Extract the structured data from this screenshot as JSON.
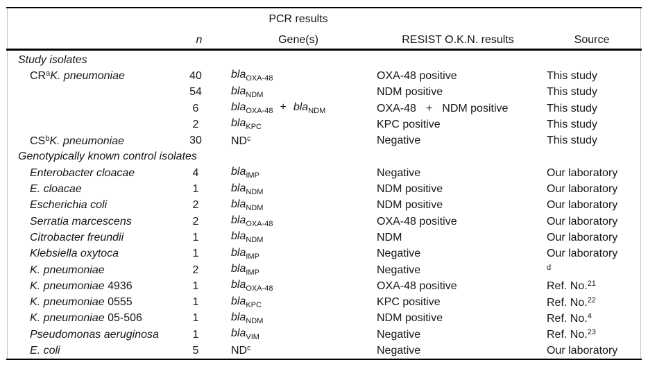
{
  "table": {
    "header": {
      "group_label": "PCR results",
      "columns": [
        "n",
        "Gene(s)",
        "RESIST O.K.N. results",
        "Source"
      ]
    },
    "rows": [
      {
        "type": "section",
        "name": [
          {
            "text": "Study isolates",
            "i": true
          }
        ],
        "n": null,
        "gene": null,
        "result": null,
        "source": null
      },
      {
        "type": "data",
        "name": [
          {
            "text": "CR"
          },
          {
            "text": "a",
            "sup": true
          },
          {
            "text": "K. pneumoniae",
            "i": true
          }
        ],
        "n": "40",
        "gene": [
          {
            "text": "bla",
            "i": true
          },
          {
            "text": "OXA-48",
            "sub": true
          }
        ],
        "result": [
          {
            "text": "OXA-48 positive"
          }
        ],
        "source": [
          {
            "text": "This study"
          }
        ]
      },
      {
        "type": "data",
        "name": null,
        "n": "54",
        "gene": [
          {
            "text": "bla",
            "i": true
          },
          {
            "text": "NDM",
            "sub": true
          }
        ],
        "result": [
          {
            "text": "NDM positive"
          }
        ],
        "source": [
          {
            "text": "This study"
          }
        ]
      },
      {
        "type": "data",
        "name": null,
        "n": "6",
        "gene": [
          {
            "text": "bla",
            "i": true
          },
          {
            "text": "OXA-48",
            "sub": true
          },
          {
            "text": "+",
            "padx": 10
          },
          {
            "text": "bla",
            "i": true
          },
          {
            "text": "NDM",
            "sub": true
          }
        ],
        "result": [
          {
            "text": "OXA-48"
          },
          {
            "text": "+",
            "padx": 14
          },
          {
            "text": "NDM positive"
          }
        ],
        "source": [
          {
            "text": "This study"
          }
        ]
      },
      {
        "type": "data",
        "name": null,
        "n": "2",
        "gene": [
          {
            "text": "bla",
            "i": true
          },
          {
            "text": "KPC",
            "sub": true
          }
        ],
        "result": [
          {
            "text": "KPC positive"
          }
        ],
        "source": [
          {
            "text": "This study"
          }
        ]
      },
      {
        "type": "data",
        "name": [
          {
            "text": "CS"
          },
          {
            "text": "b",
            "sup": true
          },
          {
            "text": "K. pneumoniae",
            "i": true
          }
        ],
        "n": "30",
        "gene": [
          {
            "text": "ND"
          },
          {
            "text": "c",
            "sup": true
          }
        ],
        "result": [
          {
            "text": "Negative"
          }
        ],
        "source": [
          {
            "text": "This study"
          }
        ]
      },
      {
        "type": "section",
        "name": [
          {
            "text": "Genotypically known control isolates",
            "i": true
          }
        ],
        "n": null,
        "gene": null,
        "result": null,
        "source": null
      },
      {
        "type": "data",
        "name": [
          {
            "text": "Enterobacter cloacae",
            "i": true
          }
        ],
        "n": "4",
        "gene": [
          {
            "text": "bla",
            "i": true
          },
          {
            "text": "IMP",
            "sub": true
          }
        ],
        "result": [
          {
            "text": "Negative"
          }
        ],
        "source": [
          {
            "text": "Our laboratory"
          }
        ]
      },
      {
        "type": "data",
        "name": [
          {
            "text": "E. cloacae",
            "i": true
          }
        ],
        "n": "1",
        "gene": [
          {
            "text": "bla",
            "i": true
          },
          {
            "text": "NDM",
            "sub": true
          }
        ],
        "result": [
          {
            "text": "NDM positive"
          }
        ],
        "source": [
          {
            "text": "Our laboratory"
          }
        ]
      },
      {
        "type": "data",
        "name": [
          {
            "text": "Escherichia coli",
            "i": true
          }
        ],
        "n": "2",
        "gene": [
          {
            "text": "bla",
            "i": true
          },
          {
            "text": "NDM",
            "sub": true
          }
        ],
        "result": [
          {
            "text": "NDM positive"
          }
        ],
        "source": [
          {
            "text": "Our laboratory"
          }
        ]
      },
      {
        "type": "data",
        "name": [
          {
            "text": "Serratia marcescens",
            "i": true
          }
        ],
        "n": "2",
        "gene": [
          {
            "text": "bla",
            "i": true
          },
          {
            "text": "OXA-48",
            "sub": true
          }
        ],
        "result": [
          {
            "text": "OXA-48 positive"
          }
        ],
        "source": [
          {
            "text": "Our laboratory"
          }
        ]
      },
      {
        "type": "data",
        "name": [
          {
            "text": "Citrobacter freundii",
            "i": true
          }
        ],
        "n": "1",
        "gene": [
          {
            "text": "bla",
            "i": true
          },
          {
            "text": "NDM",
            "sub": true
          }
        ],
        "result": [
          {
            "text": "NDM"
          }
        ],
        "source": [
          {
            "text": "Our laboratory"
          }
        ]
      },
      {
        "type": "data",
        "name": [
          {
            "text": "Klebsiella oxytoca",
            "i": true
          }
        ],
        "n": "1",
        "gene": [
          {
            "text": "bla",
            "i": true
          },
          {
            "text": "IMP",
            "sub": true
          }
        ],
        "result": [
          {
            "text": "Negative"
          }
        ],
        "source": [
          {
            "text": "Our laboratory"
          }
        ]
      },
      {
        "type": "data",
        "name": [
          {
            "text": "K. pneumoniae",
            "i": true
          }
        ],
        "n": "2",
        "gene": [
          {
            "text": "bla",
            "i": true
          },
          {
            "text": "IMP",
            "sub": true
          }
        ],
        "result": [
          {
            "text": "Negative"
          }
        ],
        "source": [
          {
            "text": "d",
            "sup": true
          }
        ]
      },
      {
        "type": "data",
        "name": [
          {
            "text": "K. pneumoniae",
            "i": true
          },
          {
            "text": " 4936"
          }
        ],
        "n": "1",
        "gene": [
          {
            "text": "bla",
            "i": true
          },
          {
            "text": "OXA-48",
            "sub": true
          }
        ],
        "result": [
          {
            "text": "OXA-48 positive"
          }
        ],
        "source": [
          {
            "text": "Ref. No."
          },
          {
            "text": "21",
            "sup": true
          }
        ]
      },
      {
        "type": "data",
        "name": [
          {
            "text": "K. pneumoniae",
            "i": true
          },
          {
            "text": " 0555"
          }
        ],
        "n": "1",
        "gene": [
          {
            "text": "bla",
            "i": true
          },
          {
            "text": "KPC",
            "sub": true
          }
        ],
        "result": [
          {
            "text": "KPC positive"
          }
        ],
        "source": [
          {
            "text": "Ref. No."
          },
          {
            "text": "22",
            "sup": true
          }
        ]
      },
      {
        "type": "data",
        "name": [
          {
            "text": "K. pneumoniae",
            "i": true
          },
          {
            "text": " 05-506"
          }
        ],
        "n": "1",
        "gene": [
          {
            "text": "bla",
            "i": true
          },
          {
            "text": "NDM",
            "sub": true
          }
        ],
        "result": [
          {
            "text": "NDM positive"
          }
        ],
        "source": [
          {
            "text": "Ref. No."
          },
          {
            "text": "4",
            "sup": true
          }
        ]
      },
      {
        "type": "data",
        "name": [
          {
            "text": "Pseudomonas aeruginosa",
            "i": true
          }
        ],
        "n": "1",
        "gene": [
          {
            "text": "bla",
            "i": true
          },
          {
            "text": "VIM",
            "sub": true
          }
        ],
        "result": [
          {
            "text": "Negative"
          }
        ],
        "source": [
          {
            "text": "Ref. No."
          },
          {
            "text": "23",
            "sup": true
          }
        ]
      },
      {
        "type": "data",
        "name": [
          {
            "text": "E. coli",
            "i": true
          }
        ],
        "n": "5",
        "gene": [
          {
            "text": "ND"
          },
          {
            "text": "c",
            "sup": true
          }
        ],
        "result": [
          {
            "text": "Negative"
          }
        ],
        "source": [
          {
            "text": "Our laboratory"
          }
        ]
      }
    ]
  }
}
